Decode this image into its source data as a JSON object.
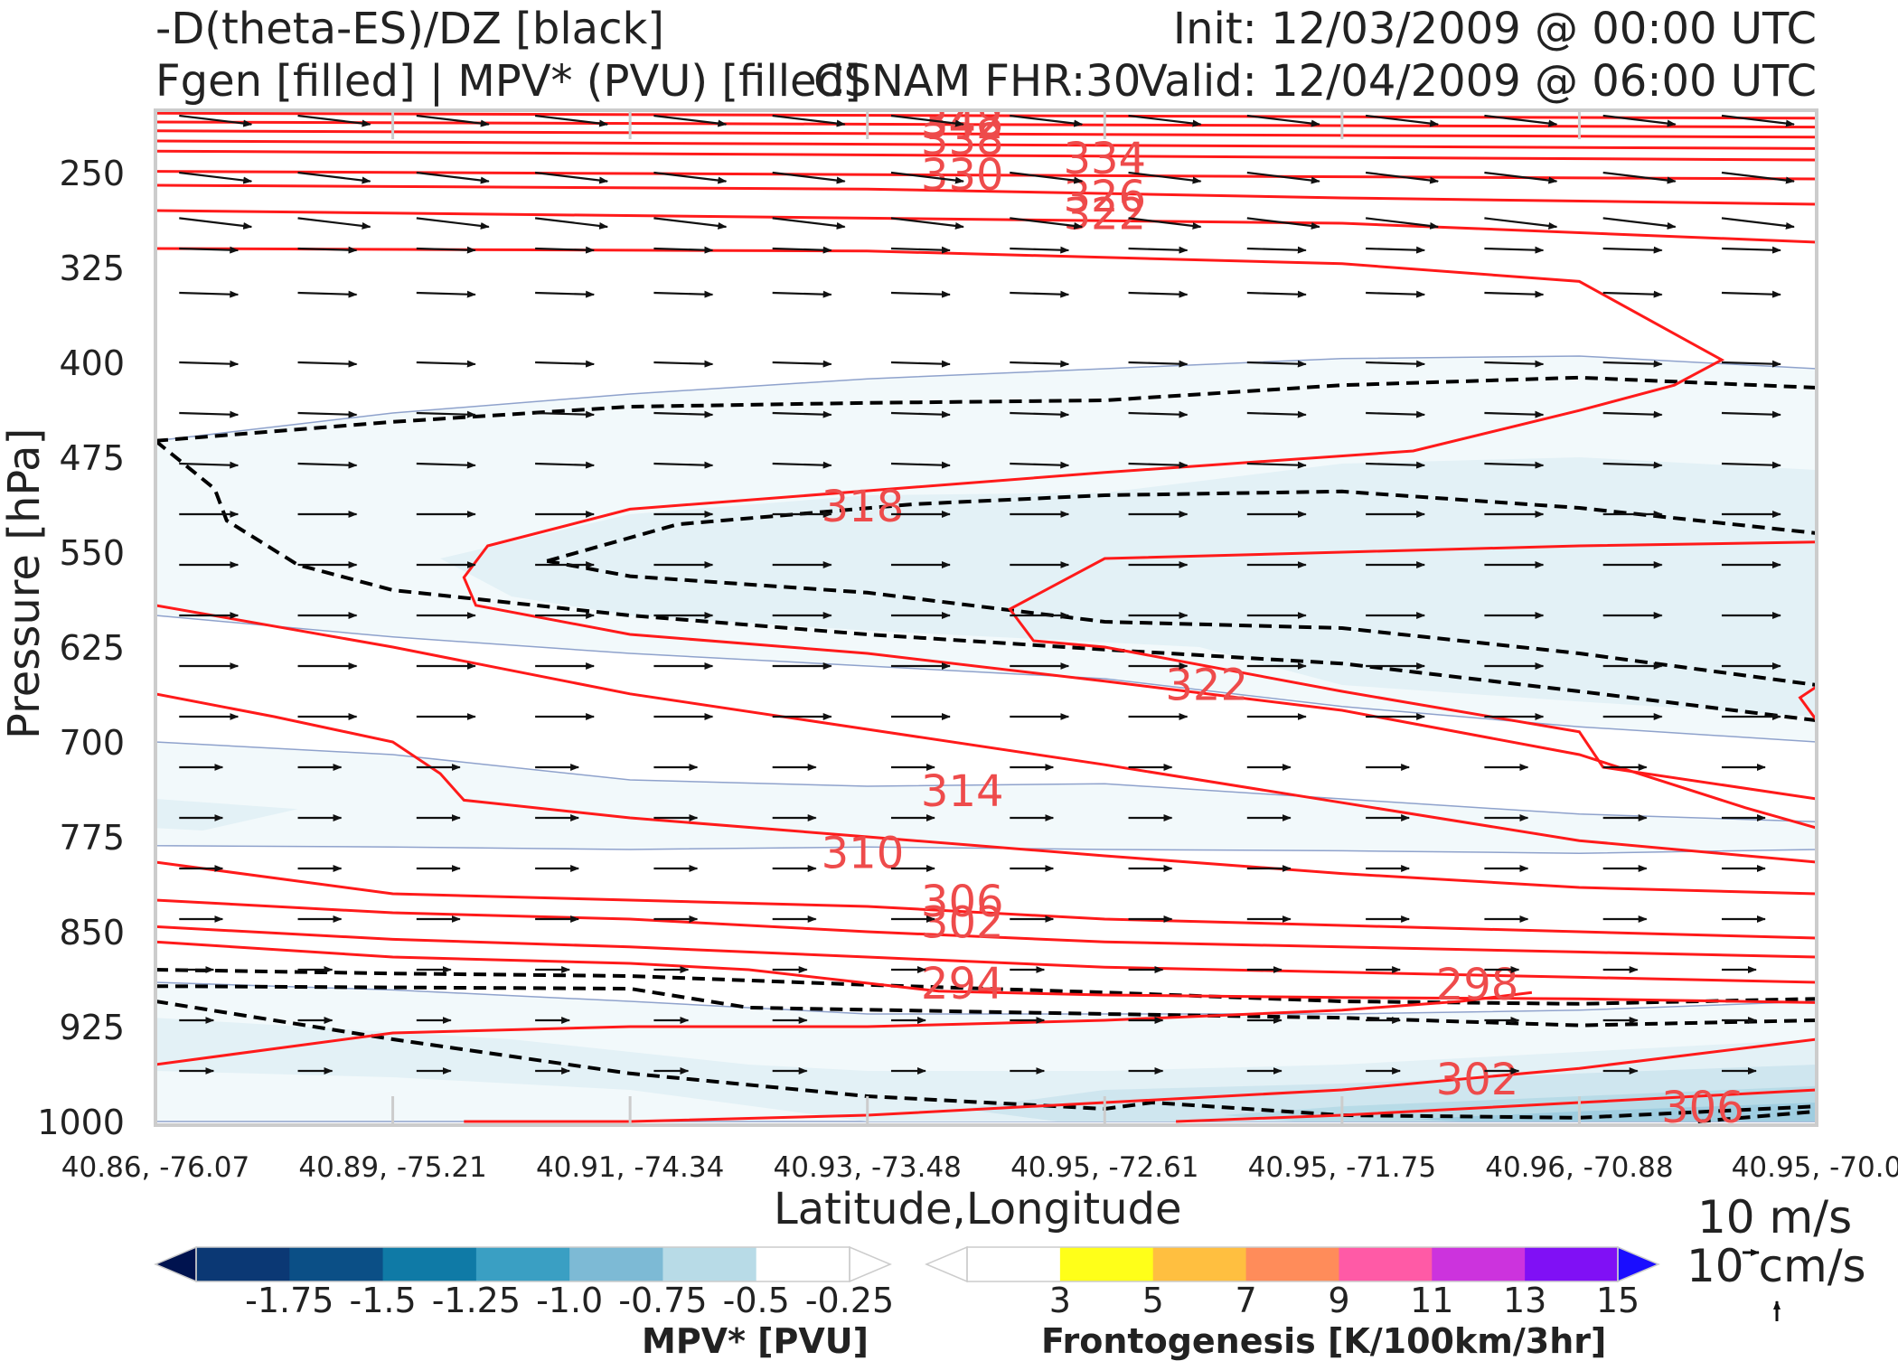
{
  "header": {
    "line1_left": "-D(theta-ES)/DZ [black]",
    "line2_left": "Fgen [filled] | MPV* (PVU) [filled]",
    "center": "CSNAM FHR:30",
    "init": "Init: 12/03/2009 @ 00:00 UTC",
    "valid": "Valid: 12/04/2009 @ 06:00 UTC"
  },
  "colors": {
    "theta_e_contour": "#ff1a1a",
    "theta_e_label": "#ee4b4b",
    "stability_contour": "#000000",
    "mpv_edge": "#8fa2cc",
    "wind_vector": "#111111",
    "fgen_scale": [
      "#ffffff",
      "#ffff19",
      "#ffbf40",
      "#ff8c5a",
      "#ff5aa6",
      "#cc33dd",
      "#8010f5",
      "#1a0dff"
    ],
    "mpv_scale": [
      "#00134f",
      "#0b3874",
      "#0b4f86",
      "#0f7aa6",
      "#3a9fc3",
      "#7dbad5",
      "#b8dbe7",
      "#ffffff"
    ]
  },
  "chart_data": {
    "type": "cross-section",
    "ylabel": "Pressure [hPa]",
    "xlabel": "Latitude,Longitude",
    "yticks": [
      "250",
      "325",
      "400",
      "475",
      "550",
      "625",
      "700",
      "775",
      "850",
      "925",
      "1000"
    ],
    "ylim": [
      1000,
      200
    ],
    "xticks": [
      "40.86, -76.07",
      "40.89, -75.21",
      "40.91, -74.34",
      "40.93, -73.48",
      "40.95, -72.61",
      "40.95, -71.75",
      "40.96, -70.88",
      "40.95, -70.0"
    ],
    "theta_e_contour_labels": [
      {
        "text": "342",
        "x": 3.4,
        "p": 212
      },
      {
        "text": "348",
        "x": 3.4,
        "p": 210
      },
      {
        "text": "338",
        "x": 3.4,
        "p": 225
      },
      {
        "text": "334",
        "x": 4.0,
        "p": 240
      },
      {
        "text": "330",
        "x": 3.4,
        "p": 253
      },
      {
        "text": "326",
        "x": 4.0,
        "p": 270
      },
      {
        "text": "322",
        "x": 4.0,
        "p": 284
      },
      {
        "text": "318",
        "x": 2.98,
        "p": 515
      },
      {
        "text": "322",
        "x": 4.43,
        "p": 656
      },
      {
        "text": "314",
        "x": 3.4,
        "p": 740
      },
      {
        "text": "310",
        "x": 2.98,
        "p": 789
      },
      {
        "text": "306",
        "x": 3.4,
        "p": 827
      },
      {
        "text": "302",
        "x": 3.4,
        "p": 844
      },
      {
        "text": "294",
        "x": 3.4,
        "p": 892
      },
      {
        "text": "298",
        "x": 5.57,
        "p": 893
      },
      {
        "text": "302",
        "x": 5.57,
        "p": 968
      },
      {
        "text": "306",
        "x": 6.52,
        "p": 990
      }
    ],
    "vector_reference": {
      "horizontal": "10 m/s",
      "vertical": "10 cm/s"
    },
    "colorbars": [
      {
        "title": "MPV* [PVU]",
        "ticks": [
          "-1.75",
          "-1.5",
          "-1.25",
          "-1.0",
          "-0.75",
          "-0.5",
          "-0.25"
        ]
      },
      {
        "title": "Frontogenesis [K/100km/3hr]",
        "ticks": [
          "3",
          "5",
          "7",
          "9",
          "11",
          "13",
          "15"
        ]
      }
    ]
  }
}
